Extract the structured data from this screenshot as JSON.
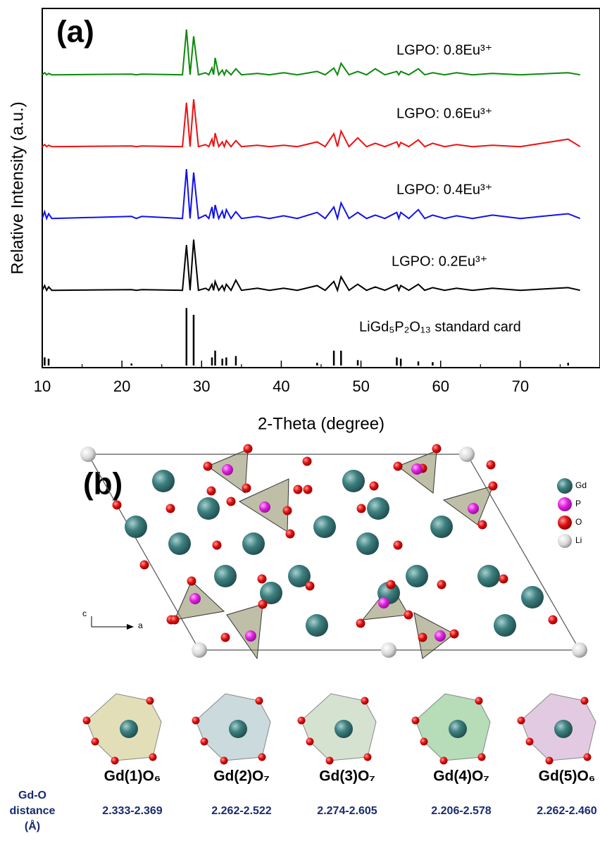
{
  "chart_data": {
    "type": "line",
    "panel_label": "(a)",
    "x_label": "2-Theta (degree)",
    "y_label": "Relative Intensity (a.u.)",
    "xlim": [
      10,
      80
    ],
    "xticks": [
      10,
      20,
      30,
      40,
      50,
      60,
      70
    ],
    "xminorticks": [
      15,
      25,
      35,
      45,
      55,
      65,
      75
    ],
    "ylim": [
      0,
      100
    ],
    "x": [
      10,
      10.3,
      10.55,
      10.8,
      11.2,
      21.2,
      21.8,
      22.5,
      27.6,
      28.1,
      28.55,
      29.0,
      29.6,
      30.5,
      30.9,
      31.3,
      31.5,
      31.7,
      32.15,
      32.6,
      32.85,
      33.1,
      33.7,
      34.3,
      35,
      37,
      38.5,
      40.3,
      42,
      44.5,
      45.5,
      46.6,
      47.05,
      47.5,
      48.5,
      49.6,
      50.7,
      51.8,
      53,
      54.5,
      54.75,
      55,
      56,
      57.2,
      58,
      59,
      60.5,
      62,
      64,
      66.5,
      70,
      76,
      77.5
    ],
    "series": [
      {
        "name": "LGPO: 0.8Eu³⁺",
        "color": "#0a8a0a",
        "values": [
          5,
          8,
          5,
          7,
          5,
          6,
          5,
          6,
          5,
          72,
          5,
          62,
          5,
          8,
          5,
          15,
          5,
          30,
          5,
          12,
          5,
          12,
          5,
          14,
          5,
          7,
          5,
          8,
          5,
          10,
          5,
          15,
          5,
          22,
          5,
          10,
          5,
          14,
          5,
          10,
          5,
          10,
          5,
          14,
          5,
          8,
          5,
          8,
          5,
          7,
          5,
          8,
          5
        ]
      },
      {
        "name": "LGPO: 0.6Eu³⁺",
        "color": "#ee1111",
        "values": [
          5,
          8,
          5,
          7,
          5,
          6,
          5,
          6,
          5,
          70,
          5,
          75,
          5,
          8,
          5,
          16,
          5,
          25,
          5,
          12,
          5,
          14,
          5,
          14,
          5,
          7,
          5,
          7,
          5,
          12,
          5,
          24,
          5,
          28,
          5,
          18,
          5,
          10,
          5,
          12,
          5,
          11,
          5,
          15,
          5,
          10,
          5,
          8,
          5,
          7,
          5,
          16,
          5
        ]
      },
      {
        "name": "LGPO: 0.4Eu³⁺",
        "color": "#1111ee",
        "values": [
          5,
          15,
          5,
          12,
          5,
          8,
          5,
          8,
          5,
          78,
          5,
          73,
          5,
          10,
          5,
          22,
          5,
          25,
          5,
          16,
          5,
          18,
          5,
          15,
          5,
          8,
          5,
          9,
          5,
          14,
          5,
          22,
          5,
          28,
          5,
          14,
          5,
          10,
          5,
          14,
          5,
          14,
          5,
          18,
          5,
          10,
          5,
          9,
          5,
          10,
          5,
          12,
          5
        ]
      },
      {
        "name": "LGPO: 0.2Eu³⁺",
        "color": "#000000",
        "values": [
          5,
          12,
          5,
          10,
          5,
          6,
          5,
          6,
          5,
          72,
          5,
          80,
          5,
          8,
          5,
          14,
          5,
          18,
          5,
          12,
          5,
          14,
          5,
          20,
          5,
          8,
          5,
          8,
          5,
          12,
          5,
          18,
          5,
          25,
          5,
          14,
          5,
          10,
          5,
          13,
          5,
          12,
          5,
          14,
          5,
          9,
          5,
          8,
          5,
          8,
          5,
          9,
          5
        ]
      }
    ],
    "reference": {
      "name": "LiGd₅P₂O₁₃ standard card",
      "color": "#000000",
      "x": [
        10.3,
        10.8,
        21.2,
        28.1,
        29.0,
        31.3,
        31.7,
        32.6,
        33.1,
        34.3,
        44.5,
        46.6,
        47.5,
        49.6,
        54.5,
        55,
        57.2,
        59,
        76
      ],
      "values": [
        12,
        10,
        3,
        85,
        75,
        12,
        22,
        10,
        12,
        14,
        4,
        22,
        22,
        8,
        12,
        10,
        6,
        5,
        4
      ]
    }
  },
  "structure": {
    "panel_label": "(b)",
    "legend": [
      "Gd",
      "P",
      "O",
      "Li"
    ],
    "axes": [
      "c",
      "a"
    ],
    "polyhedra": [
      "Gd(1)O₆",
      "Gd(2)O₇",
      "Gd(3)O₇",
      "Gd(4)O₇",
      "Gd(5)O₆"
    ],
    "distance_label": [
      "Gd-O",
      "distance",
      "(Å)"
    ],
    "distances": [
      "2.333-2.369",
      "2.262-2.522",
      "2.274-2.605",
      "2.206-2.578",
      "2.262-2.460"
    ]
  }
}
